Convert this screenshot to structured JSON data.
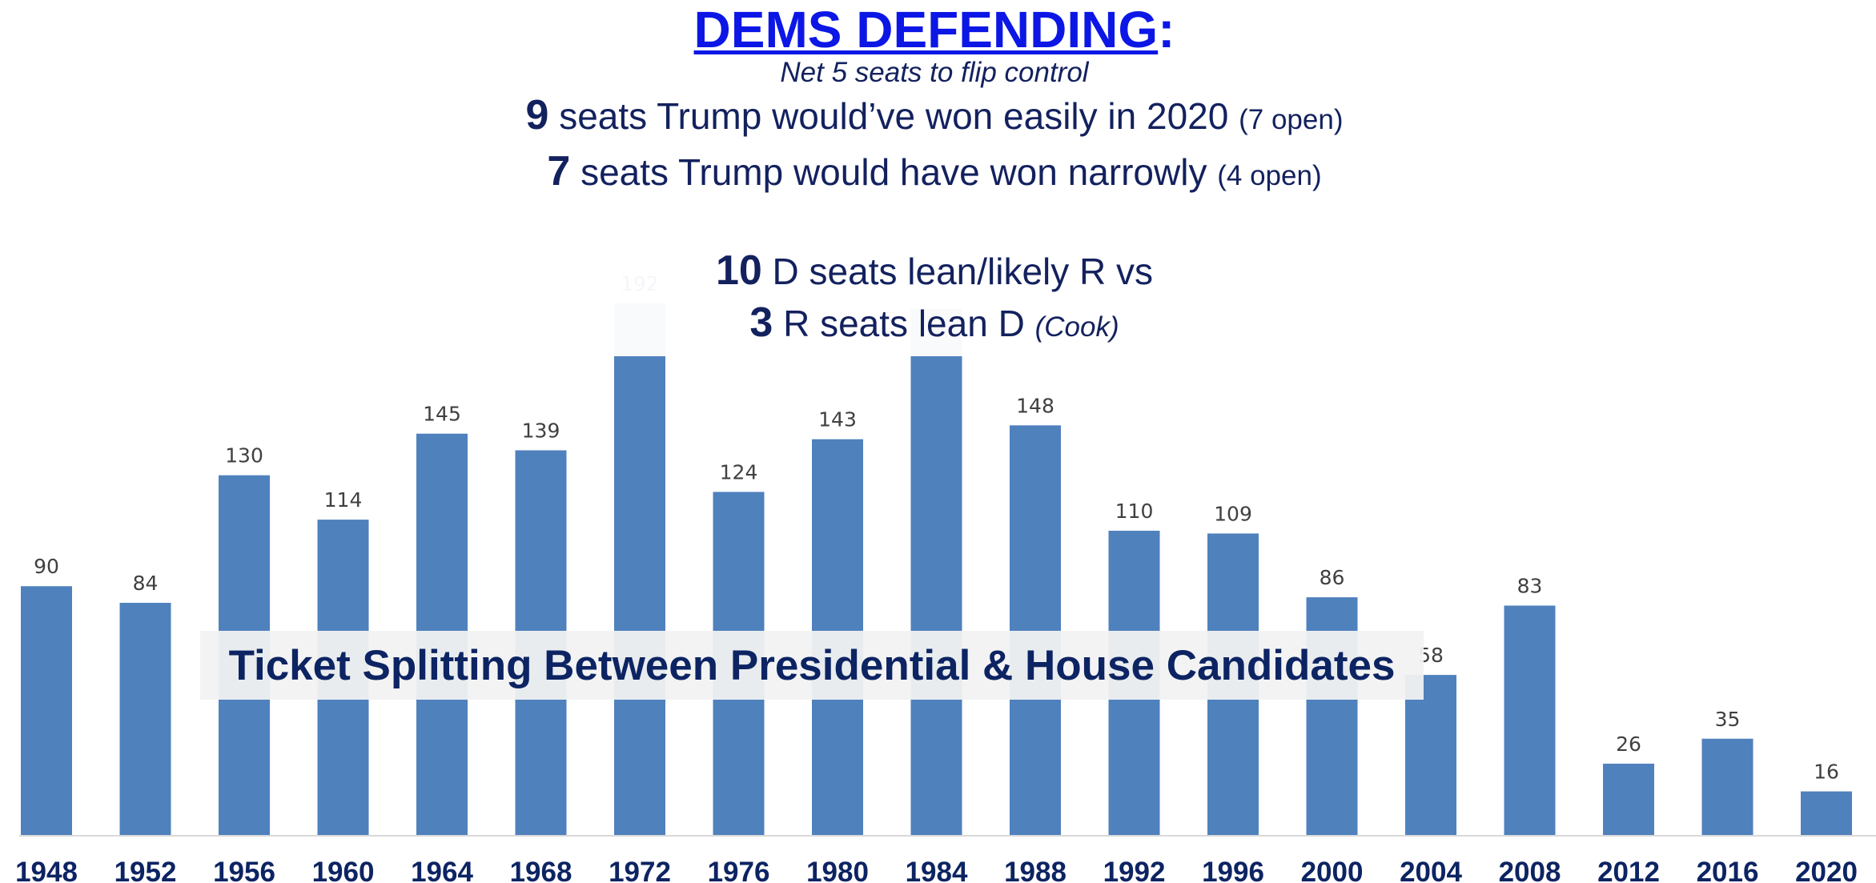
{
  "chart_data": {
    "type": "bar",
    "title": "Ticket Splitting Between Presidential & House Candidates",
    "categories": [
      "1948",
      "1952",
      "1956",
      "1960",
      "1964",
      "1968",
      "1972",
      "1976",
      "1980",
      "1984",
      "1988",
      "1992",
      "1996",
      "2000",
      "2004",
      "2008",
      "2012",
      "2016",
      "2020"
    ],
    "values": [
      90,
      84,
      130,
      114,
      145,
      139,
      192,
      124,
      143,
      190,
      148,
      110,
      109,
      86,
      58,
      83,
      26,
      35,
      16
    ],
    "data_labels": [
      "90",
      "84",
      "130",
      "114",
      "145",
      "139",
      "192",
      "124",
      "143",
      "",
      "148",
      "110",
      "109",
      "86",
      "58",
      "83",
      "26",
      "35",
      "16"
    ],
    "ylim": [
      0,
      205
    ],
    "grid": false,
    "legend": "none",
    "bar_color": "#4f81bd",
    "faded_bar_color": "#dbe4f1",
    "axis_label_color": "#0d2463"
  },
  "panel": {
    "title": "DEMS DEFENDING",
    "title_suffix": ":",
    "subtitle": "Net 5 seats to flip control",
    "lines": [
      {
        "num": "9",
        "text": " seats Trump would’ve won easily in 2020 ",
        "note": "(7 open)"
      },
      {
        "num": "7",
        "text": " seats Trump would have won narrowly ",
        "note": "(4 open)"
      },
      {
        "num": "10",
        "text": " D seats lean/likely R vs",
        "note": ""
      },
      {
        "num": "3",
        "text": " R seats lean D ",
        "note": "(Cook)"
      }
    ],
    "title_color": "#0c17e6",
    "text_color": "#13215e"
  },
  "caption": "Ticket Splitting Between Presidential & House Candidates"
}
